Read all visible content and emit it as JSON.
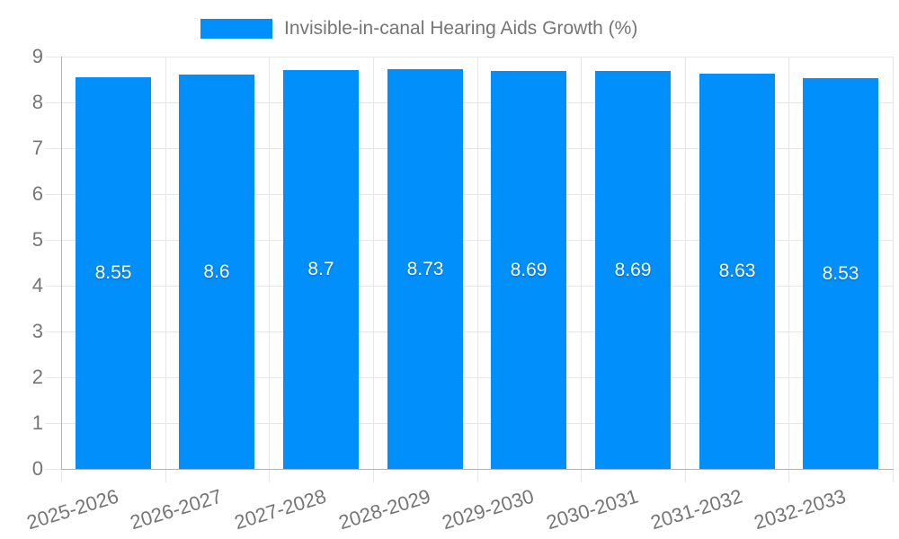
{
  "legend": {
    "label": "Invisible-in-canal Hearing Aids Growth (%)"
  },
  "chart_data": {
    "type": "bar",
    "title": "Invisible-in-canal Hearing Aids Growth (%)",
    "categories": [
      "2025-2026",
      "2026-2027",
      "2027-2028",
      "2028-2029",
      "2029-2030",
      "2030-2031",
      "2031-2032",
      "2032-2033"
    ],
    "series": [
      {
        "name": "Invisible-in-canal Hearing Aids Growth (%)",
        "values": [
          8.55,
          8.6,
          8.7,
          8.73,
          8.69,
          8.69,
          8.63,
          8.53
        ]
      }
    ],
    "data_labels": [
      "8.55",
      "8.6",
      "8.7",
      "8.73",
      "8.69",
      "8.69",
      "8.63",
      "8.53"
    ],
    "xlabel": "",
    "ylabel": "",
    "ylim": [
      0,
      9
    ],
    "y_ticks": [
      0,
      1,
      2,
      3,
      4,
      5,
      6,
      7,
      8,
      9
    ],
    "grid": true,
    "legend_position": "top"
  },
  "colors": {
    "bar": "#008FFB",
    "grid": "#e7e7e7",
    "axis_border": "#b3b3b3",
    "tick_text": "#757575",
    "legend_text": "#757575",
    "data_label_text": "#ffffff",
    "background": "#ffffff"
  }
}
